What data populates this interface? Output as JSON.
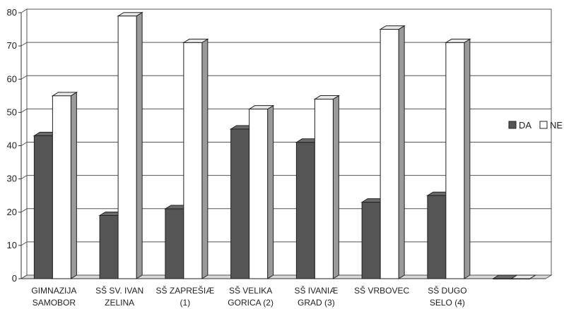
{
  "chart_data": {
    "type": "bar",
    "style": "3d-clustered",
    "categories": [
      [
        "GIMNAZIJA",
        "SAMOBOR"
      ],
      [
        "SŠ SV. IVAN",
        "ZELINA"
      ],
      [
        "SŠ ZAPREŠIÆ",
        "(1)"
      ],
      [
        "SŠ VELIKA",
        "GORICA (2)"
      ],
      [
        "SŠ IVANIÆ",
        "GRAD (3)"
      ],
      [
        "SŠ VRBOVEC"
      ],
      [
        "SŠ DUGO",
        "SELO (4)"
      ],
      [
        ""
      ]
    ],
    "series": [
      {
        "name": "DA",
        "color": "#555555",
        "values": [
          43,
          19,
          21,
          45,
          41,
          23,
          25,
          0
        ]
      },
      {
        "name": "NE",
        "color": "#ffffff",
        "values": [
          55,
          79,
          71,
          51,
          54,
          75,
          71,
          0
        ]
      }
    ],
    "title": "",
    "xlabel": "",
    "ylabel": "",
    "ylim": [
      0,
      80
    ],
    "yticks": [
      "0",
      "10",
      "20",
      "30",
      "40",
      "50",
      "60",
      "70",
      "80"
    ],
    "grid": true,
    "legend": "right"
  }
}
